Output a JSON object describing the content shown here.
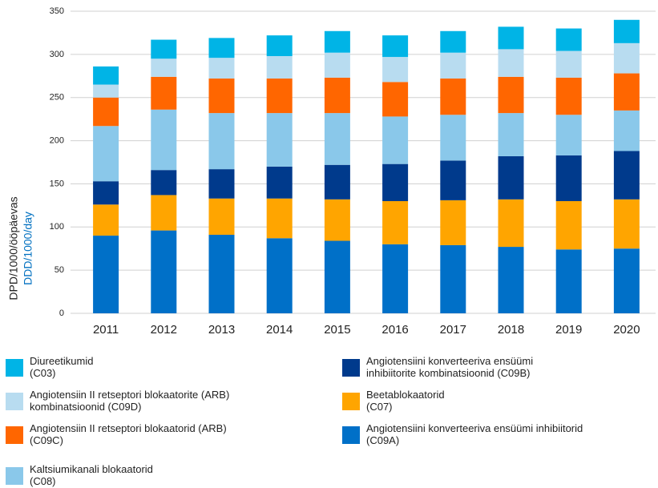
{
  "chart_data": {
    "type": "stacked_bar",
    "y_label": "DPD/1000/ööpäevas",
    "y_label_en": "DDD/1000/day",
    "categories": [
      "2011",
      "2012",
      "2013",
      "2014",
      "2015",
      "2016",
      "2017",
      "2018",
      "2019",
      "2020"
    ],
    "ylim": [
      0,
      350
    ],
    "yticks": [
      0,
      50,
      100,
      150,
      200,
      250,
      300,
      350
    ],
    "grid": true,
    "series": [
      {
        "name": "Angiotensiini konverteeriva ensüümi inhibiitorid\n(C09A)",
        "color": "#0070c8",
        "values": [
          90,
          96,
          91,
          87,
          84,
          80,
          79,
          77,
          74,
          75
        ]
      },
      {
        "name": "Beetablokaatorid\n(C07)",
        "color": "#ffa500",
        "values": [
          36,
          41,
          42,
          46,
          48,
          50,
          52,
          55,
          56,
          57
        ]
      },
      {
        "name": "Angiotensiini konverteeriva ensüümi\ninhibiitorite kombinatsioonid (C09B)",
        "color": "#003a8c",
        "values": [
          27,
          29,
          34,
          37,
          40,
          43,
          46,
          50,
          53,
          56
        ]
      },
      {
        "name": "Kaltsiumikanali blokaatorid\n(C08)",
        "color": "#8ac8ea",
        "values": [
          64,
          70,
          65,
          62,
          60,
          55,
          53,
          50,
          47,
          47
        ]
      },
      {
        "name": "Angiotensiin II retseptori blokaatorid (ARB)\n(C09C)",
        "color": "#ff6600",
        "values": [
          33,
          38,
          40,
          40,
          41,
          40,
          42,
          42,
          43,
          43
        ]
      },
      {
        "name": "Angiotensiin II retseptori blokaatorite (ARB)\nkombinatsioonid (C09D)",
        "color": "#b8dcf0",
        "values": [
          15,
          21,
          24,
          26,
          29,
          29,
          30,
          32,
          31,
          35
        ]
      },
      {
        "name": "Diureetikumid\n(C03)",
        "color": "#00b4e6",
        "values": [
          21,
          22,
          23,
          24,
          25,
          25,
          25,
          26,
          26,
          27
        ]
      }
    ]
  }
}
